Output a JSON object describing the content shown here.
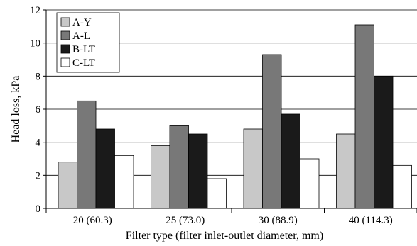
{
  "chart_data": {
    "type": "bar",
    "title": "",
    "xlabel": "Filter type (filter inlet-outlet diameter, mm)",
    "ylabel": "Head loss, kPa",
    "ylim": [
      0,
      12
    ],
    "yticks": [
      0,
      2,
      4,
      6,
      8,
      10,
      12
    ],
    "grid": "horizontal",
    "legend_position": "top-left",
    "categories": [
      "20 (60.3)",
      "25 (73.0)",
      "30 (88.9)",
      "40 (114.3)"
    ],
    "series": [
      {
        "name": "A-Y",
        "color": "#c8c8c8",
        "values": [
          2.8,
          3.8,
          4.8,
          4.5
        ]
      },
      {
        "name": "A-L",
        "color": "#787878",
        "values": [
          6.5,
          5.0,
          9.3,
          11.1
        ]
      },
      {
        "name": "B-LT",
        "color": "#1a1a1a",
        "values": [
          4.8,
          4.5,
          5.7,
          8.0
        ]
      },
      {
        "name": "C-LT",
        "color": "#ffffff",
        "values": [
          3.2,
          1.8,
          3.0,
          2.6
        ]
      }
    ]
  }
}
